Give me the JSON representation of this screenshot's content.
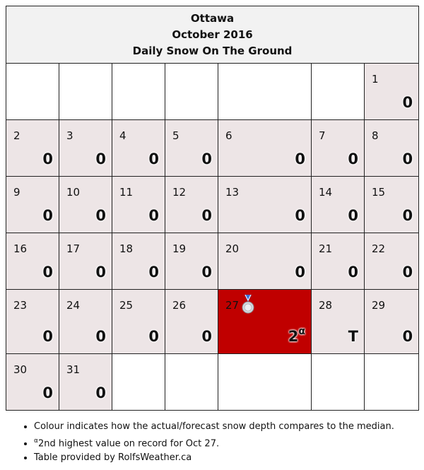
{
  "header": {
    "city": "Ottawa",
    "month": "October 2016",
    "subtitle": "Daily Snow On The Ground"
  },
  "weeks": [
    [
      null,
      null,
      null,
      null,
      null,
      null,
      {
        "day": "1",
        "value": "0"
      }
    ],
    [
      {
        "day": "2",
        "value": "0"
      },
      {
        "day": "3",
        "value": "0"
      },
      {
        "day": "4",
        "value": "0"
      },
      {
        "day": "5",
        "value": "0"
      },
      {
        "day": "6",
        "value": "0"
      },
      {
        "day": "7",
        "value": "0"
      },
      {
        "day": "8",
        "value": "0"
      }
    ],
    [
      {
        "day": "9",
        "value": "0"
      },
      {
        "day": "10",
        "value": "0"
      },
      {
        "day": "11",
        "value": "0"
      },
      {
        "day": "12",
        "value": "0"
      },
      {
        "day": "13",
        "value": "0"
      },
      {
        "day": "14",
        "value": "0"
      },
      {
        "day": "15",
        "value": "0"
      }
    ],
    [
      {
        "day": "16",
        "value": "0"
      },
      {
        "day": "17",
        "value": "0"
      },
      {
        "day": "18",
        "value": "0"
      },
      {
        "day": "19",
        "value": "0"
      },
      {
        "day": "20",
        "value": "0"
      },
      {
        "day": "21",
        "value": "0"
      },
      {
        "day": "22",
        "value": "0"
      }
    ],
    [
      {
        "day": "23",
        "value": "0"
      },
      {
        "day": "24",
        "value": "0"
      },
      {
        "day": "25",
        "value": "0"
      },
      {
        "day": "26",
        "value": "0"
      },
      {
        "day": "27",
        "value": "2",
        "sup": "α",
        "highlight": true,
        "medal": "silver-medal-icon"
      },
      {
        "day": "28",
        "value": "T"
      },
      {
        "day": "29",
        "value": "0"
      }
    ],
    [
      {
        "day": "30",
        "value": "0"
      },
      {
        "day": "31",
        "value": "0"
      },
      null,
      null,
      null,
      null,
      null
    ]
  ],
  "colors": {
    "day_cell": "#ede5e6",
    "highlight": "#c00000",
    "header_bg": "#f2f2f2"
  },
  "notes": {
    "colour": "Colour indicates how the actual/forecast snow depth compares to the median.",
    "record_mark": "α",
    "record": "2nd highest value on record for Oct 27.",
    "source": "Table provided by RolfsWeather.ca"
  }
}
